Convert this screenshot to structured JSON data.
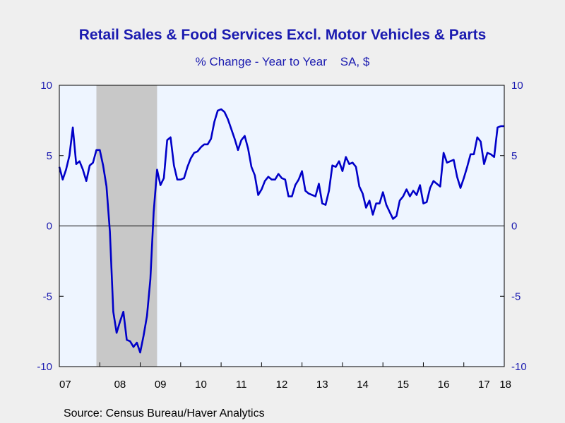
{
  "header": {
    "title": "Retail Sales & Food Services Excl. Motor Vehicles & Parts",
    "subtitle": "% Change - Year to Year    SA, $"
  },
  "footer": {
    "source": "Source:  Census Bureau/Haver Analytics"
  },
  "colors": {
    "background": "#efefef",
    "plot_background": "#eef5ff",
    "recession_shade": "#c8c8c8",
    "line": "#0000c8",
    "axis_text": "#1b1bb0"
  },
  "chart_data": {
    "type": "line",
    "title": "Retail Sales & Food Services Excl. Motor Vehicles & Parts",
    "subtitle": "% Change - Year to Year    SA, $",
    "xlabel": "",
    "ylabel": "",
    "ylim": [
      -10,
      10
    ],
    "y_ticks": [
      10,
      5,
      0,
      -5,
      -10
    ],
    "y_axis_position": "both",
    "x_tick_labels": [
      "07",
      "08",
      "09",
      "10",
      "11",
      "12",
      "13",
      "14",
      "15",
      "16",
      "17",
      "18"
    ],
    "x_range": [
      "2007-01",
      "2018-01"
    ],
    "grid": false,
    "zero_line": true,
    "recession_shading": [
      {
        "start": "2007-12",
        "end": "2009-06"
      }
    ],
    "series": [
      {
        "color": "#0000c8",
        "x": [
          "2007-01",
          "2007-02",
          "2007-03",
          "2007-04",
          "2007-05",
          "2007-06",
          "2007-07",
          "2007-08",
          "2007-09",
          "2007-10",
          "2007-11",
          "2007-12",
          "2008-01",
          "2008-02",
          "2008-03",
          "2008-04",
          "2008-05",
          "2008-06",
          "2008-07",
          "2008-08",
          "2008-09",
          "2008-10",
          "2008-11",
          "2008-12",
          "2009-01",
          "2009-02",
          "2009-03",
          "2009-04",
          "2009-05",
          "2009-06",
          "2009-07",
          "2009-08",
          "2009-09",
          "2009-10",
          "2009-11",
          "2009-12",
          "2010-01",
          "2010-02",
          "2010-03",
          "2010-04",
          "2010-05",
          "2010-06",
          "2010-07",
          "2010-08",
          "2010-09",
          "2010-10",
          "2010-11",
          "2010-12",
          "2011-01",
          "2011-02",
          "2011-03",
          "2011-04",
          "2011-05",
          "2011-06",
          "2011-07",
          "2011-08",
          "2011-09",
          "2011-10",
          "2011-11",
          "2011-12",
          "2012-01",
          "2012-02",
          "2012-03",
          "2012-04",
          "2012-05",
          "2012-06",
          "2012-07",
          "2012-08",
          "2012-09",
          "2012-10",
          "2012-11",
          "2012-12",
          "2013-01",
          "2013-02",
          "2013-03",
          "2013-04",
          "2013-05",
          "2013-06",
          "2013-07",
          "2013-08",
          "2013-09",
          "2013-10",
          "2013-11",
          "2013-12",
          "2014-01",
          "2014-02",
          "2014-03",
          "2014-04",
          "2014-05",
          "2014-06",
          "2014-07",
          "2014-08",
          "2014-09",
          "2014-10",
          "2014-11",
          "2014-12",
          "2015-01",
          "2015-02",
          "2015-03",
          "2015-04",
          "2015-05",
          "2015-06",
          "2015-07",
          "2015-08",
          "2015-09",
          "2015-10",
          "2015-11",
          "2015-12",
          "2016-01",
          "2016-02",
          "2016-03",
          "2016-04",
          "2016-05",
          "2016-06",
          "2016-07",
          "2016-08",
          "2016-09",
          "2016-10",
          "2016-11",
          "2016-12",
          "2017-01",
          "2017-02",
          "2017-03",
          "2017-04",
          "2017-05",
          "2017-06",
          "2017-07",
          "2017-08",
          "2017-09",
          "2017-10",
          "2017-11",
          "2017-12",
          "2018-01"
        ],
        "values": [
          4.2,
          3.3,
          4.0,
          5.0,
          7.0,
          4.4,
          4.6,
          4.0,
          3.2,
          4.3,
          4.5,
          5.4,
          5.4,
          4.3,
          2.8,
          -0.4,
          -6.1,
          -7.6,
          -6.8,
          -6.1,
          -8.1,
          -8.2,
          -8.6,
          -8.3,
          -9.0,
          -7.8,
          -6.4,
          -3.8,
          1.0,
          4.0,
          2.9,
          3.4,
          6.1,
          6.3,
          4.3,
          3.3,
          3.3,
          3.4,
          4.2,
          4.8,
          5.2,
          5.3,
          5.6,
          5.8,
          5.8,
          6.2,
          7.4,
          8.2,
          8.3,
          8.1,
          7.6,
          6.9,
          6.2,
          5.4,
          6.1,
          6.4,
          5.5,
          4.2,
          3.6,
          2.2,
          2.6,
          3.2,
          3.5,
          3.3,
          3.3,
          3.7,
          3.4,
          3.3,
          2.1,
          2.1,
          2.9,
          3.3,
          3.9,
          2.5,
          2.3,
          2.2,
          2.1,
          3.0,
          1.6,
          1.5,
          2.5,
          4.3,
          4.2,
          4.6,
          3.9,
          4.9,
          4.4,
          4.5,
          4.2,
          2.8,
          2.3,
          1.3,
          1.8,
          0.8,
          1.6,
          1.6,
          2.4,
          1.5,
          1.0,
          0.5,
          0.7,
          1.8,
          2.1,
          2.6,
          2.1,
          2.5,
          2.2,
          2.9,
          1.6,
          1.7,
          2.7,
          3.2,
          3.0,
          2.8,
          5.2,
          4.5,
          4.6,
          4.7,
          3.5,
          2.7,
          3.4,
          4.2,
          5.1,
          5.1,
          6.3,
          6.0,
          4.4,
          5.2,
          5.1,
          4.9,
          7.0,
          7.1,
          7.1
        ]
      }
    ]
  }
}
